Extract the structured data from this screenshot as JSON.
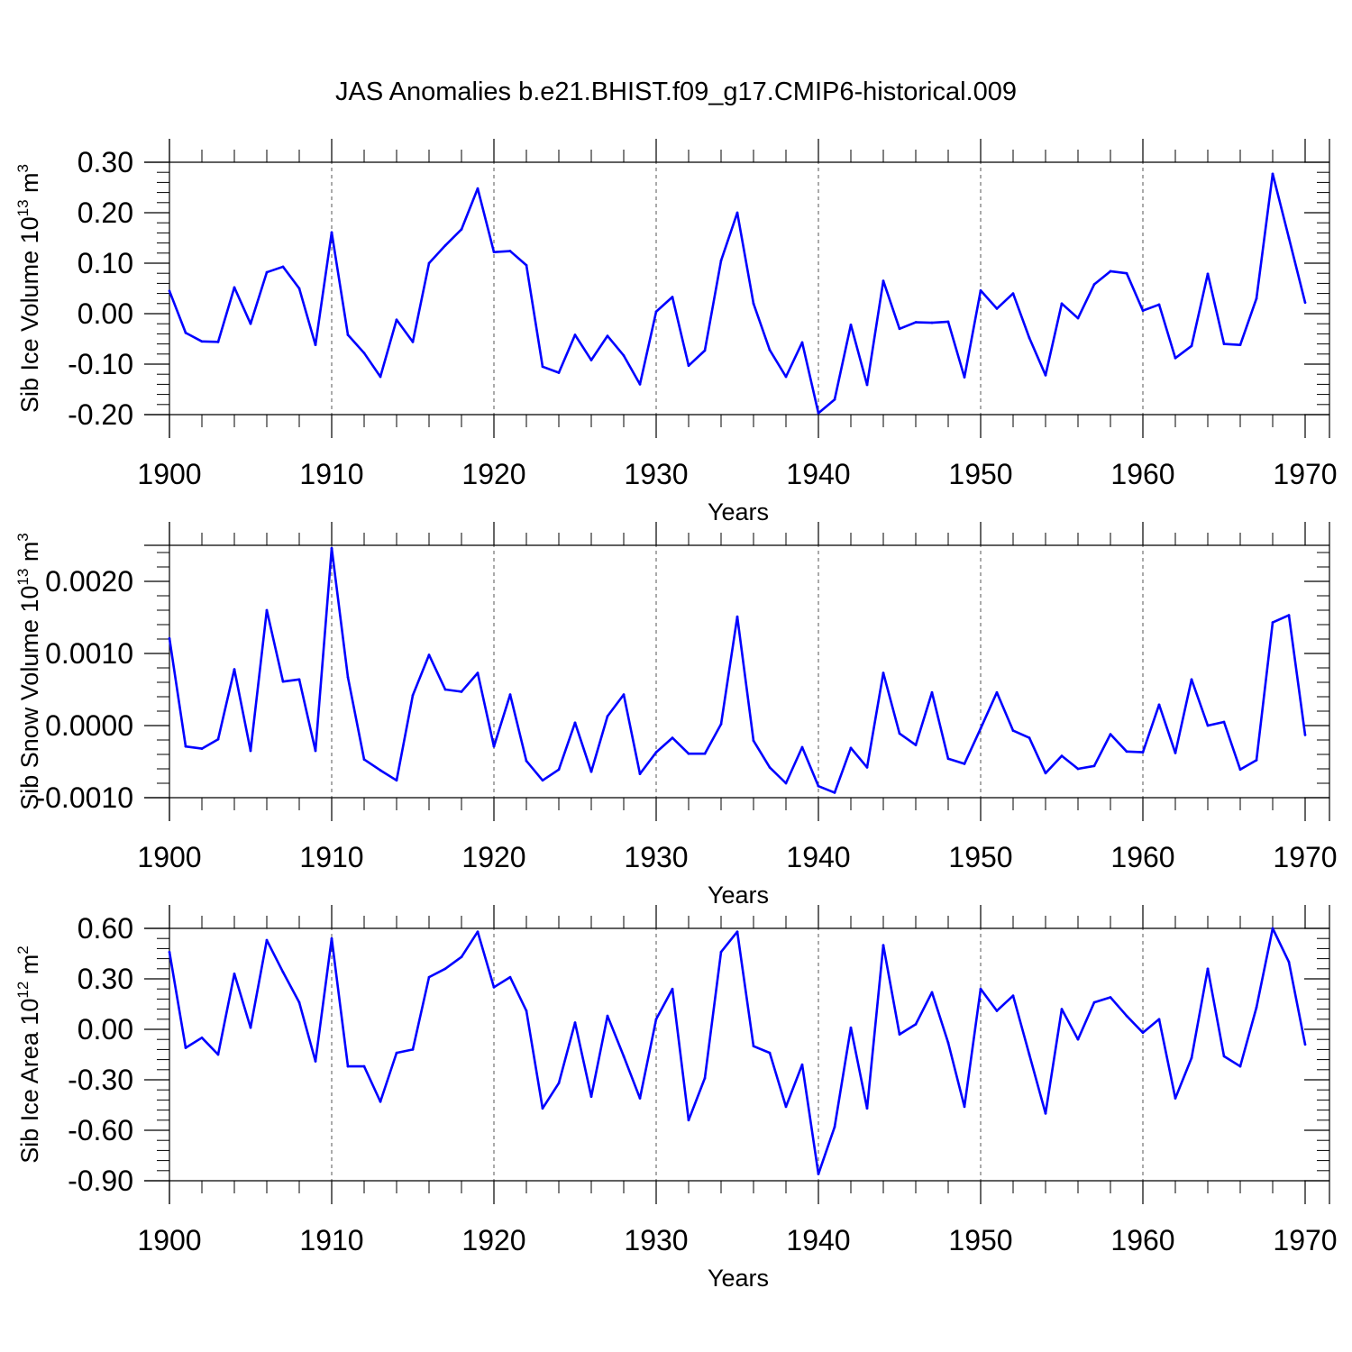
{
  "title": "JAS Anomalies b.e21.BHIST.f09_g17.CMIP6-historical.009",
  "line_color": "#0000ff",
  "chart_data": [
    {
      "type": "line",
      "title": "",
      "xlabel": "Years",
      "ylabel": "Sib Ice Volume 10",
      "ylabel_exp": "13",
      "ylabel_unit": " m",
      "ylabel_unit_exp": "3",
      "xlim": [
        1900,
        1970
      ],
      "ylim": [
        -0.2,
        0.3
      ],
      "y_ticks": [
        -0.2,
        -0.1,
        0.0,
        0.1,
        0.2,
        0.3
      ],
      "y_tick_labels": [
        "-0.20",
        "-0.10",
        "0.00",
        "0.10",
        "0.20",
        "0.30"
      ],
      "x_ticks": [
        1900,
        1910,
        1920,
        1930,
        1940,
        1950,
        1960,
        1970
      ],
      "x_tick_labels": [
        "1900",
        "1910",
        "1920",
        "1930",
        "1940",
        "1950",
        "1960",
        "1970"
      ],
      "x_start": 1900,
      "values": [
        0.045,
        -0.038,
        -0.055,
        -0.056,
        0.052,
        -0.02,
        0.082,
        0.093,
        0.05,
        -0.062,
        0.161,
        -0.042,
        -0.078,
        -0.125,
        -0.012,
        -0.056,
        0.1,
        0.135,
        0.167,
        0.248,
        0.122,
        0.124,
        0.096,
        -0.105,
        -0.117,
        -0.042,
        -0.092,
        -0.044,
        -0.083,
        -0.14,
        0.004,
        0.033,
        -0.103,
        -0.073,
        0.105,
        0.2,
        0.02,
        -0.072,
        -0.125,
        -0.057,
        -0.197,
        -0.17,
        -0.022,
        -0.141,
        0.065,
        -0.03,
        -0.017,
        -0.018,
        -0.016,
        -0.126,
        0.046,
        0.01,
        0.04,
        -0.048,
        -0.122,
        0.02,
        -0.009,
        0.058,
        0.084,
        0.08,
        0.006,
        0.018,
        -0.088,
        -0.064,
        0.079,
        -0.06,
        -0.062,
        0.03,
        0.277,
        0.15,
        0.022
      ]
    },
    {
      "type": "line",
      "title": "",
      "xlabel": "Years",
      "ylabel": "Sib Snow Volume 10",
      "ylabel_exp": "13",
      "ylabel_unit": " m",
      "ylabel_unit_exp": "3",
      "xlim": [
        1900,
        1970
      ],
      "ylim": [
        -0.001,
        0.0025
      ],
      "y_ticks": [
        -0.001,
        0.0,
        0.001,
        0.002
      ],
      "y_tick_labels": [
        "-0.0010",
        "0.0000",
        "0.0010",
        "0.0020"
      ],
      "x_ticks": [
        1900,
        1910,
        1920,
        1930,
        1940,
        1950,
        1960,
        1970
      ],
      "x_tick_labels": [
        "1900",
        "1910",
        "1920",
        "1930",
        "1940",
        "1950",
        "1960",
        "1970"
      ],
      "x_start": 1900,
      "values": [
        0.00121,
        -0.00029,
        -0.00032,
        -0.00019,
        0.00078,
        -0.00035,
        0.0016,
        0.00061,
        0.00064,
        -0.00035,
        0.00246,
        0.00067,
        -0.00047,
        -0.00062,
        -0.00076,
        0.00042,
        0.00098,
        0.0005,
        0.00047,
        0.00073,
        -0.00029,
        0.00043,
        -0.00049,
        -0.00076,
        -0.00061,
        4e-05,
        -0.00064,
        0.00013,
        0.00043,
        -0.00067,
        -0.00037,
        -0.00017,
        -0.00039,
        -0.00039,
        2e-05,
        0.00151,
        -0.00021,
        -0.00058,
        -0.0008,
        -0.0003,
        -0.00084,
        -0.00093,
        -0.00031,
        -0.00058,
        0.00073,
        -0.00011,
        -0.00027,
        0.00046,
        -0.00046,
        -0.00053,
        -4e-05,
        0.00046,
        -7e-05,
        -0.00017,
        -0.00066,
        -0.00042,
        -0.0006,
        -0.00056,
        -0.00012,
        -0.00036,
        -0.00037,
        0.00029,
        -0.00038,
        0.00064,
        0.0,
        5e-05,
        -0.00061,
        -0.00048,
        0.00143,
        0.00153,
        -0.00013
      ]
    },
    {
      "type": "line",
      "title": "",
      "xlabel": "Years",
      "ylabel": "Sib Ice Area 10",
      "ylabel_exp": "12",
      "ylabel_unit": " m",
      "ylabel_unit_exp": "2",
      "xlim": [
        1900,
        1970
      ],
      "ylim": [
        -0.9,
        0.6
      ],
      "y_ticks": [
        -0.9,
        -0.6,
        -0.3,
        0.0,
        0.3,
        0.6
      ],
      "y_tick_labels": [
        "-0.90",
        "-0.60",
        "-0.30",
        "0.00",
        "0.30",
        "0.60"
      ],
      "x_ticks": [
        1900,
        1910,
        1920,
        1930,
        1940,
        1950,
        1960,
        1970
      ],
      "x_tick_labels": [
        "1900",
        "1910",
        "1920",
        "1930",
        "1940",
        "1950",
        "1960",
        "1970"
      ],
      "x_start": 1900,
      "values": [
        0.46,
        -0.11,
        -0.05,
        -0.15,
        0.33,
        0.01,
        0.53,
        0.34,
        0.16,
        -0.19,
        0.54,
        -0.22,
        -0.22,
        -0.43,
        -0.14,
        -0.12,
        0.31,
        0.36,
        0.43,
        0.58,
        0.25,
        0.31,
        0.11,
        -0.47,
        -0.32,
        0.04,
        -0.4,
        0.08,
        -0.16,
        -0.41,
        0.06,
        0.24,
        -0.54,
        -0.29,
        0.46,
        0.58,
        -0.1,
        -0.14,
        -0.46,
        -0.21,
        -0.86,
        -0.58,
        0.01,
        -0.47,
        0.5,
        -0.03,
        0.03,
        0.22,
        -0.08,
        -0.46,
        0.24,
        0.11,
        0.2,
        -0.15,
        -0.5,
        0.12,
        -0.06,
        0.16,
        0.19,
        0.08,
        -0.02,
        0.06,
        -0.41,
        -0.17,
        0.36,
        -0.16,
        -0.22,
        0.13,
        0.6,
        0.4,
        -0.09
      ]
    }
  ]
}
